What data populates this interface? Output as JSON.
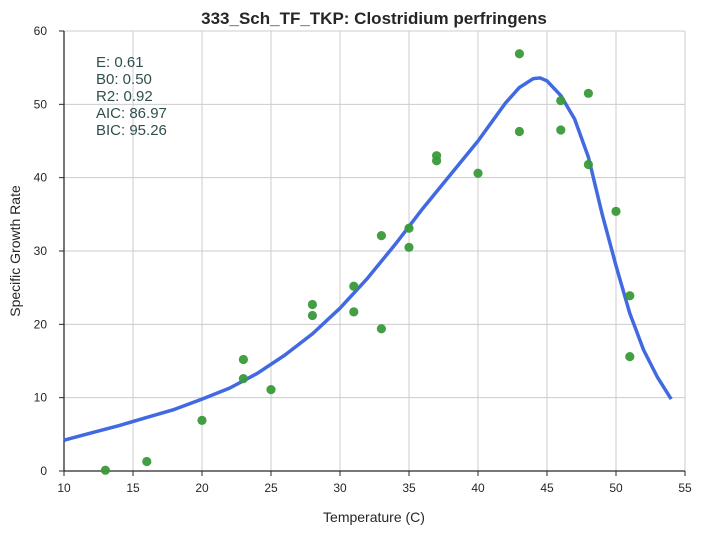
{
  "chart_data": {
    "type": "scatter",
    "title": "333_Sch_TF_TKP: Clostridium perfringens",
    "xlabel": "Temperature (C)",
    "ylabel": "Specific Growth Rate",
    "xlim": [
      10,
      55
    ],
    "ylim": [
      0,
      60
    ],
    "xticks": [
      "10",
      "15",
      "20",
      "25",
      "30",
      "35",
      "40",
      "45",
      "50",
      "55"
    ],
    "yticks": [
      "0",
      "10",
      "20",
      "30",
      "40",
      "50",
      "60"
    ],
    "grid": true,
    "annotation_lines": [
      "E:  0.61",
      "B0:  0.50",
      "R2:  0.92",
      "AIC: 86.97",
      "BIC: 95.26"
    ],
    "point_color": "#3a9a3a",
    "curve_color": "#4169e1",
    "series": [
      {
        "kind": "scatter",
        "x": [
          13,
          16,
          20,
          23,
          23,
          25,
          28,
          28,
          31,
          31,
          33,
          33,
          35,
          35,
          37,
          37,
          40,
          43,
          43,
          46,
          46,
          48,
          48,
          50,
          51,
          51
        ],
        "y": [
          0.1,
          1.3,
          6.9,
          15.2,
          12.6,
          11.1,
          22.7,
          21.2,
          25.2,
          21.7,
          32.1,
          19.4,
          33.1,
          30.5,
          43.0,
          42.3,
          40.6,
          56.9,
          46.3,
          50.5,
          46.5,
          51.5,
          41.8,
          35.4,
          23.9,
          15.6
        ]
      },
      {
        "kind": "line",
        "x": [
          10,
          12,
          14,
          16,
          18,
          20,
          22,
          24,
          26,
          28,
          30,
          32,
          34,
          36,
          38,
          40,
          42,
          43,
          44,
          44.5,
          45,
          46,
          47,
          48,
          49,
          50,
          51,
          52,
          53,
          54
        ],
        "y": [
          4.2,
          5.2,
          6.2,
          7.3,
          8.4,
          9.8,
          11.3,
          13.3,
          15.8,
          18.7,
          22.2,
          26.3,
          30.9,
          35.8,
          40.4,
          45.0,
          50.2,
          52.3,
          53.5,
          53.6,
          53.2,
          51.2,
          48.0,
          42.8,
          35.0,
          28.0,
          21.5,
          16.5,
          12.8,
          9.8
        ]
      }
    ]
  }
}
